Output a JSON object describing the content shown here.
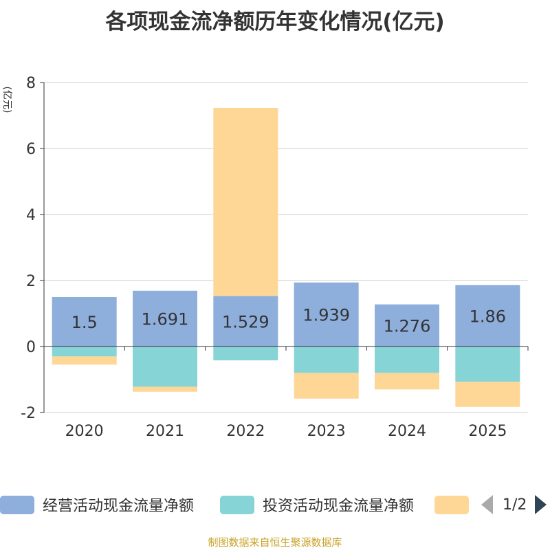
{
  "chart_data": {
    "type": "bar",
    "stacked": true,
    "title": "各项现金流净额历年变化情况(亿元)",
    "ylabel": "(亿元)",
    "xlabel": "",
    "categories": [
      "2020",
      "2021",
      "2022",
      "2023",
      "2024",
      "2025"
    ],
    "ylim": [
      -2,
      8
    ],
    "yticks": [
      -2,
      0,
      2,
      4,
      6,
      8
    ],
    "grid": true,
    "series": [
      {
        "name": "经营活动现金流量净额",
        "color": "#8eaedb",
        "values": [
          1.5,
          1.691,
          1.529,
          1.939,
          1.276,
          1.86
        ],
        "labels": [
          "1.5",
          "1.691",
          "1.529",
          "1.939",
          "1.276",
          "1.86"
        ]
      },
      {
        "name": "投资活动现金流量净额",
        "color": "#86d4d6",
        "values": [
          -0.3,
          -1.22,
          -0.42,
          -0.8,
          -0.8,
          -1.07
        ]
      },
      {
        "name": "",
        "color": "#fed797",
        "values": [
          -0.25,
          -0.15,
          5.7,
          -0.78,
          -0.5,
          -0.76
        ]
      }
    ]
  },
  "legend": {
    "page": "1/2",
    "legend_position": "bottom"
  },
  "footer": {
    "source": "制图数据来自恒生聚源数据库"
  }
}
